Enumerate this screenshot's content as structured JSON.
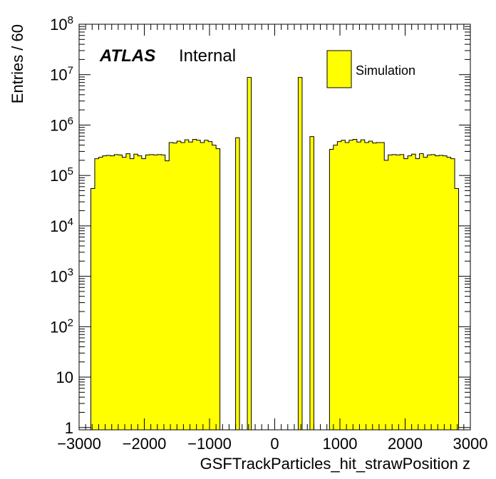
{
  "chart_data": {
    "type": "bar",
    "title": "",
    "xlabel": "GSFTrackParticles_hit_strawPosition z",
    "ylabel": "Entries / 60",
    "xlim": [
      -3000,
      3000
    ],
    "ylim": [
      0.9,
      100000000
    ],
    "yscale": "log",
    "bin_width": 60,
    "fill_color": "#ffff00",
    "edge_color": "#000000",
    "x_ticks": [
      {
        "value": -3000,
        "label": "−3000"
      },
      {
        "value": -2000,
        "label": "−2000"
      },
      {
        "value": -1000,
        "label": "−1000"
      },
      {
        "value": 0,
        "label": "0"
      },
      {
        "value": 1000,
        "label": "1000"
      },
      {
        "value": 2000,
        "label": "2000"
      },
      {
        "value": 3000,
        "label": "3000"
      }
    ],
    "y_ticks": [
      {
        "value": 1,
        "base": "1",
        "exp": ""
      },
      {
        "value": 10,
        "base": "10",
        "exp": ""
      },
      {
        "value": 100,
        "base": "10",
        "exp": "2"
      },
      {
        "value": 1000,
        "base": "10",
        "exp": "3"
      },
      {
        "value": 10000,
        "base": "10",
        "exp": "4"
      },
      {
        "value": 100000,
        "base": "10",
        "exp": "5"
      },
      {
        "value": 1000000,
        "base": "10",
        "exp": "6"
      },
      {
        "value": 10000000,
        "base": "10",
        "exp": "7"
      },
      {
        "value": 100000000,
        "base": "10",
        "exp": "8"
      }
    ],
    "series": [
      {
        "name": "Simulation",
        "bins": [
          {
            "x0": -2820,
            "x1": -2760,
            "value": 55000
          },
          {
            "x0": -2760,
            "x1": -2700,
            "value": 215000
          },
          {
            "x0": -2700,
            "x1": -2640,
            "value": 230000
          },
          {
            "x0": -2640,
            "x1": -2580,
            "value": 245000
          },
          {
            "x0": -2580,
            "x1": -2520,
            "value": 250000
          },
          {
            "x0": -2520,
            "x1": -2460,
            "value": 245000
          },
          {
            "x0": -2460,
            "x1": -2400,
            "value": 260000
          },
          {
            "x0": -2400,
            "x1": -2340,
            "value": 255000
          },
          {
            "x0": -2340,
            "x1": -2280,
            "value": 230000
          },
          {
            "x0": -2280,
            "x1": -2220,
            "value": 270000
          },
          {
            "x0": -2220,
            "x1": -2160,
            "value": 215000
          },
          {
            "x0": -2160,
            "x1": -2100,
            "value": 265000
          },
          {
            "x0": -2100,
            "x1": -2040,
            "value": 245000
          },
          {
            "x0": -2040,
            "x1": -1980,
            "value": 215000
          },
          {
            "x0": -1980,
            "x1": -1920,
            "value": 255000
          },
          {
            "x0": -1920,
            "x1": -1860,
            "value": 260000
          },
          {
            "x0": -1860,
            "x1": -1800,
            "value": 255000
          },
          {
            "x0": -1800,
            "x1": -1740,
            "value": 260000
          },
          {
            "x0": -1740,
            "x1": -1680,
            "value": 255000
          },
          {
            "x0": -1680,
            "x1": -1620,
            "value": 195000
          },
          {
            "x0": -1620,
            "x1": -1560,
            "value": 450000
          },
          {
            "x0": -1560,
            "x1": -1500,
            "value": 440000
          },
          {
            "x0": -1500,
            "x1": -1440,
            "value": 480000
          },
          {
            "x0": -1440,
            "x1": -1380,
            "value": 450000
          },
          {
            "x0": -1380,
            "x1": -1320,
            "value": 510000
          },
          {
            "x0": -1320,
            "x1": -1260,
            "value": 460000
          },
          {
            "x0": -1260,
            "x1": -1200,
            "value": 520000
          },
          {
            "x0": -1200,
            "x1": -1140,
            "value": 500000
          },
          {
            "x0": -1140,
            "x1": -1080,
            "value": 450000
          },
          {
            "x0": -1080,
            "x1": -1020,
            "value": 500000
          },
          {
            "x0": -1020,
            "x1": -960,
            "value": 470000
          },
          {
            "x0": -960,
            "x1": -900,
            "value": 400000
          },
          {
            "x0": -900,
            "x1": -840,
            "value": 340000
          },
          {
            "x0": -600,
            "x1": -540,
            "value": 560000
          },
          {
            "x0": -420,
            "x1": -360,
            "value": 8800000
          },
          {
            "x0": 360,
            "x1": 420,
            "value": 8800000
          },
          {
            "x0": 540,
            "x1": 600,
            "value": 590000
          },
          {
            "x0": 840,
            "x1": 900,
            "value": 330000
          },
          {
            "x0": 900,
            "x1": 960,
            "value": 400000
          },
          {
            "x0": 960,
            "x1": 1020,
            "value": 470000
          },
          {
            "x0": 1020,
            "x1": 1080,
            "value": 500000
          },
          {
            "x0": 1080,
            "x1": 1140,
            "value": 450000
          },
          {
            "x0": 1140,
            "x1": 1200,
            "value": 500000
          },
          {
            "x0": 1200,
            "x1": 1260,
            "value": 520000
          },
          {
            "x0": 1260,
            "x1": 1320,
            "value": 460000
          },
          {
            "x0": 1320,
            "x1": 1380,
            "value": 510000
          },
          {
            "x0": 1380,
            "x1": 1440,
            "value": 450000
          },
          {
            "x0": 1440,
            "x1": 1500,
            "value": 480000
          },
          {
            "x0": 1500,
            "x1": 1560,
            "value": 440000
          },
          {
            "x0": 1560,
            "x1": 1620,
            "value": 450000
          },
          {
            "x0": 1620,
            "x1": 1680,
            "value": 450000
          },
          {
            "x0": 1680,
            "x1": 1740,
            "value": 200000
          },
          {
            "x0": 1740,
            "x1": 1800,
            "value": 255000
          },
          {
            "x0": 1800,
            "x1": 1860,
            "value": 260000
          },
          {
            "x0": 1860,
            "x1": 1920,
            "value": 255000
          },
          {
            "x0": 1920,
            "x1": 1980,
            "value": 260000
          },
          {
            "x0": 1980,
            "x1": 2040,
            "value": 215000
          },
          {
            "x0": 2040,
            "x1": 2100,
            "value": 245000
          },
          {
            "x0": 2100,
            "x1": 2160,
            "value": 265000
          },
          {
            "x0": 2160,
            "x1": 2220,
            "value": 215000
          },
          {
            "x0": 2220,
            "x1": 2280,
            "value": 270000
          },
          {
            "x0": 2280,
            "x1": 2340,
            "value": 230000
          },
          {
            "x0": 2340,
            "x1": 2400,
            "value": 255000
          },
          {
            "x0": 2400,
            "x1": 2460,
            "value": 260000
          },
          {
            "x0": 2460,
            "x1": 2520,
            "value": 245000
          },
          {
            "x0": 2520,
            "x1": 2580,
            "value": 250000
          },
          {
            "x0": 2580,
            "x1": 2640,
            "value": 245000
          },
          {
            "x0": 2640,
            "x1": 2700,
            "value": 230000
          },
          {
            "x0": 2700,
            "x1": 2760,
            "value": 215000
          },
          {
            "x0": 2760,
            "x1": 2820,
            "value": 55000
          }
        ]
      }
    ],
    "legend": {
      "placement": "top-right",
      "entries": [
        "Simulation"
      ]
    },
    "annotations": {
      "experiment": "ATLAS",
      "status": "Internal"
    }
  }
}
